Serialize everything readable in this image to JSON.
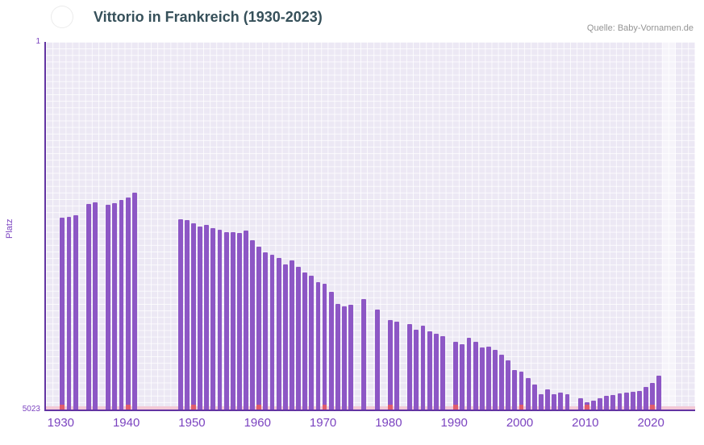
{
  "header": {
    "title": "Vittorio in Frankreich (1930-2023)",
    "source": "Quelle: Baby-Vornamen.de",
    "flag_icon": "france-flag-icon"
  },
  "chart_data": {
    "type": "bar",
    "title": "Vittorio in Frankreich (1930-2023)",
    "xlabel": "",
    "ylabel": "Platz",
    "y_axis": {
      "top_label": "1",
      "bottom_label": "5023",
      "min": 1,
      "max": 5023,
      "inverted": true
    },
    "x_range": {
      "start": 1928,
      "end": 2026
    },
    "x_ticks": [
      1930,
      1940,
      1950,
      1960,
      1970,
      1980,
      1990,
      2000,
      2010,
      2020
    ],
    "grid": true,
    "legend": false,
    "highlight_band": {
      "start_year": 2022,
      "end_year": 2023
    },
    "years": [
      1930,
      1931,
      1932,
      1933,
      1934,
      1935,
      1936,
      1937,
      1938,
      1939,
      1940,
      1941,
      1942,
      1943,
      1944,
      1945,
      1946,
      1947,
      1948,
      1949,
      1950,
      1951,
      1952,
      1953,
      1954,
      1955,
      1956,
      1957,
      1958,
      1959,
      1960,
      1961,
      1962,
      1963,
      1964,
      1965,
      1966,
      1967,
      1968,
      1969,
      1970,
      1971,
      1972,
      1973,
      1974,
      1975,
      1976,
      1977,
      1978,
      1979,
      1980,
      1981,
      1982,
      1983,
      1984,
      1985,
      1986,
      1987,
      1988,
      1989,
      1990,
      1991,
      1992,
      1993,
      1994,
      1995,
      1996,
      1997,
      1998,
      1999,
      2000,
      2001,
      2002,
      2003,
      2004,
      2005,
      2006,
      2007,
      2008,
      2009,
      2010,
      2011,
      2012,
      2013,
      2014,
      2015,
      2016,
      2017,
      2018,
      2019,
      2020,
      2021,
      2022,
      2023
    ],
    "ranks": [
      2400,
      2390,
      2370,
      null,
      2210,
      2190,
      null,
      2230,
      2200,
      2160,
      2130,
      2060,
      null,
      null,
      null,
      null,
      null,
      null,
      2420,
      2440,
      2480,
      2520,
      2500,
      2550,
      2570,
      2600,
      2600,
      2610,
      2580,
      2710,
      2800,
      2880,
      2910,
      2950,
      3040,
      2990,
      3070,
      3150,
      3200,
      3280,
      3310,
      3420,
      3580,
      3610,
      3590,
      null,
      3510,
      null,
      3660,
      null,
      3800,
      3820,
      null,
      3850,
      3930,
      3880,
      3960,
      3990,
      4020,
      null,
      4100,
      4130,
      4040,
      4100,
      4180,
      4160,
      4210,
      4270,
      4350,
      4480,
      4500,
      4590,
      4680,
      4810,
      4750,
      4810,
      4790,
      4810,
      null,
      4870,
      4920,
      4900,
      4870,
      4840,
      4820,
      4800,
      4790,
      4780,
      4770,
      4710,
      4660,
      4560,
      null,
      null
    ],
    "colors": {
      "bar": "#8d57c5",
      "plot_background": "#ece8f4",
      "grid": "#ffffff",
      "axis": "#6234a2",
      "axis_labels": "#7b43c0",
      "missing_strip": "#f3c9d6",
      "decade_mark": "#e05c6c",
      "highlight_band": "rgba(255,255,255,0.5)",
      "title": "#36505a",
      "source": "#949494",
      "flag_blue": "#2d3a94",
      "flag_white": "#ffffff",
      "flag_red": "#e04250"
    }
  }
}
